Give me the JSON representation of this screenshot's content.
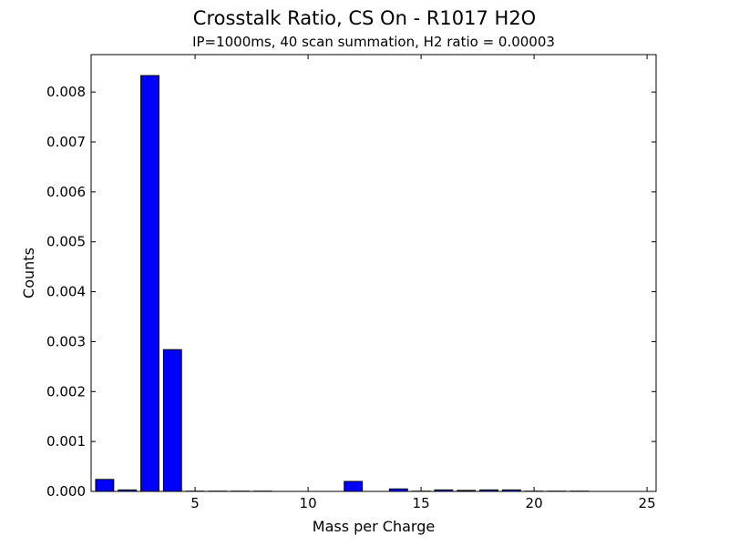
{
  "chart_data": {
    "type": "bar",
    "title": "Crosstalk Ratio, CS On - R1017 H2O",
    "subtitle": "IP=1000ms, 40 scan summation, H2 ratio = 0.00003",
    "xlabel": "Mass per Charge",
    "ylabel": "Counts",
    "xlim": [
      0.4,
      25.4
    ],
    "ylim": [
      0,
      0.00875
    ],
    "x": [
      1,
      2,
      3,
      4,
      5,
      6,
      7,
      8,
      9,
      10,
      11,
      12,
      13,
      14,
      15,
      16,
      17,
      18,
      19,
      20,
      21,
      22,
      23,
      24,
      25
    ],
    "values": [
      0.00024,
      3e-05,
      0.00833,
      0.00284,
      5e-06,
      5e-06,
      5e-06,
      5e-06,
      0.0,
      0.0,
      0.0,
      0.0002,
      0.0,
      5e-05,
      5e-06,
      3e-05,
      2e-05,
      3e-05,
      3e-05,
      5e-06,
      5e-06,
      5e-06,
      0.0,
      0.0,
      0.0
    ],
    "xticks": [
      "5",
      "10",
      "15",
      "20",
      "25"
    ],
    "yticks": [
      "0.000",
      "0.001",
      "0.002",
      "0.003",
      "0.004",
      "0.005",
      "0.006",
      "0.007",
      "0.008"
    ],
    "grid": false,
    "legend": "none",
    "bar_color": "#0000ff",
    "edge_color": "#000000"
  }
}
